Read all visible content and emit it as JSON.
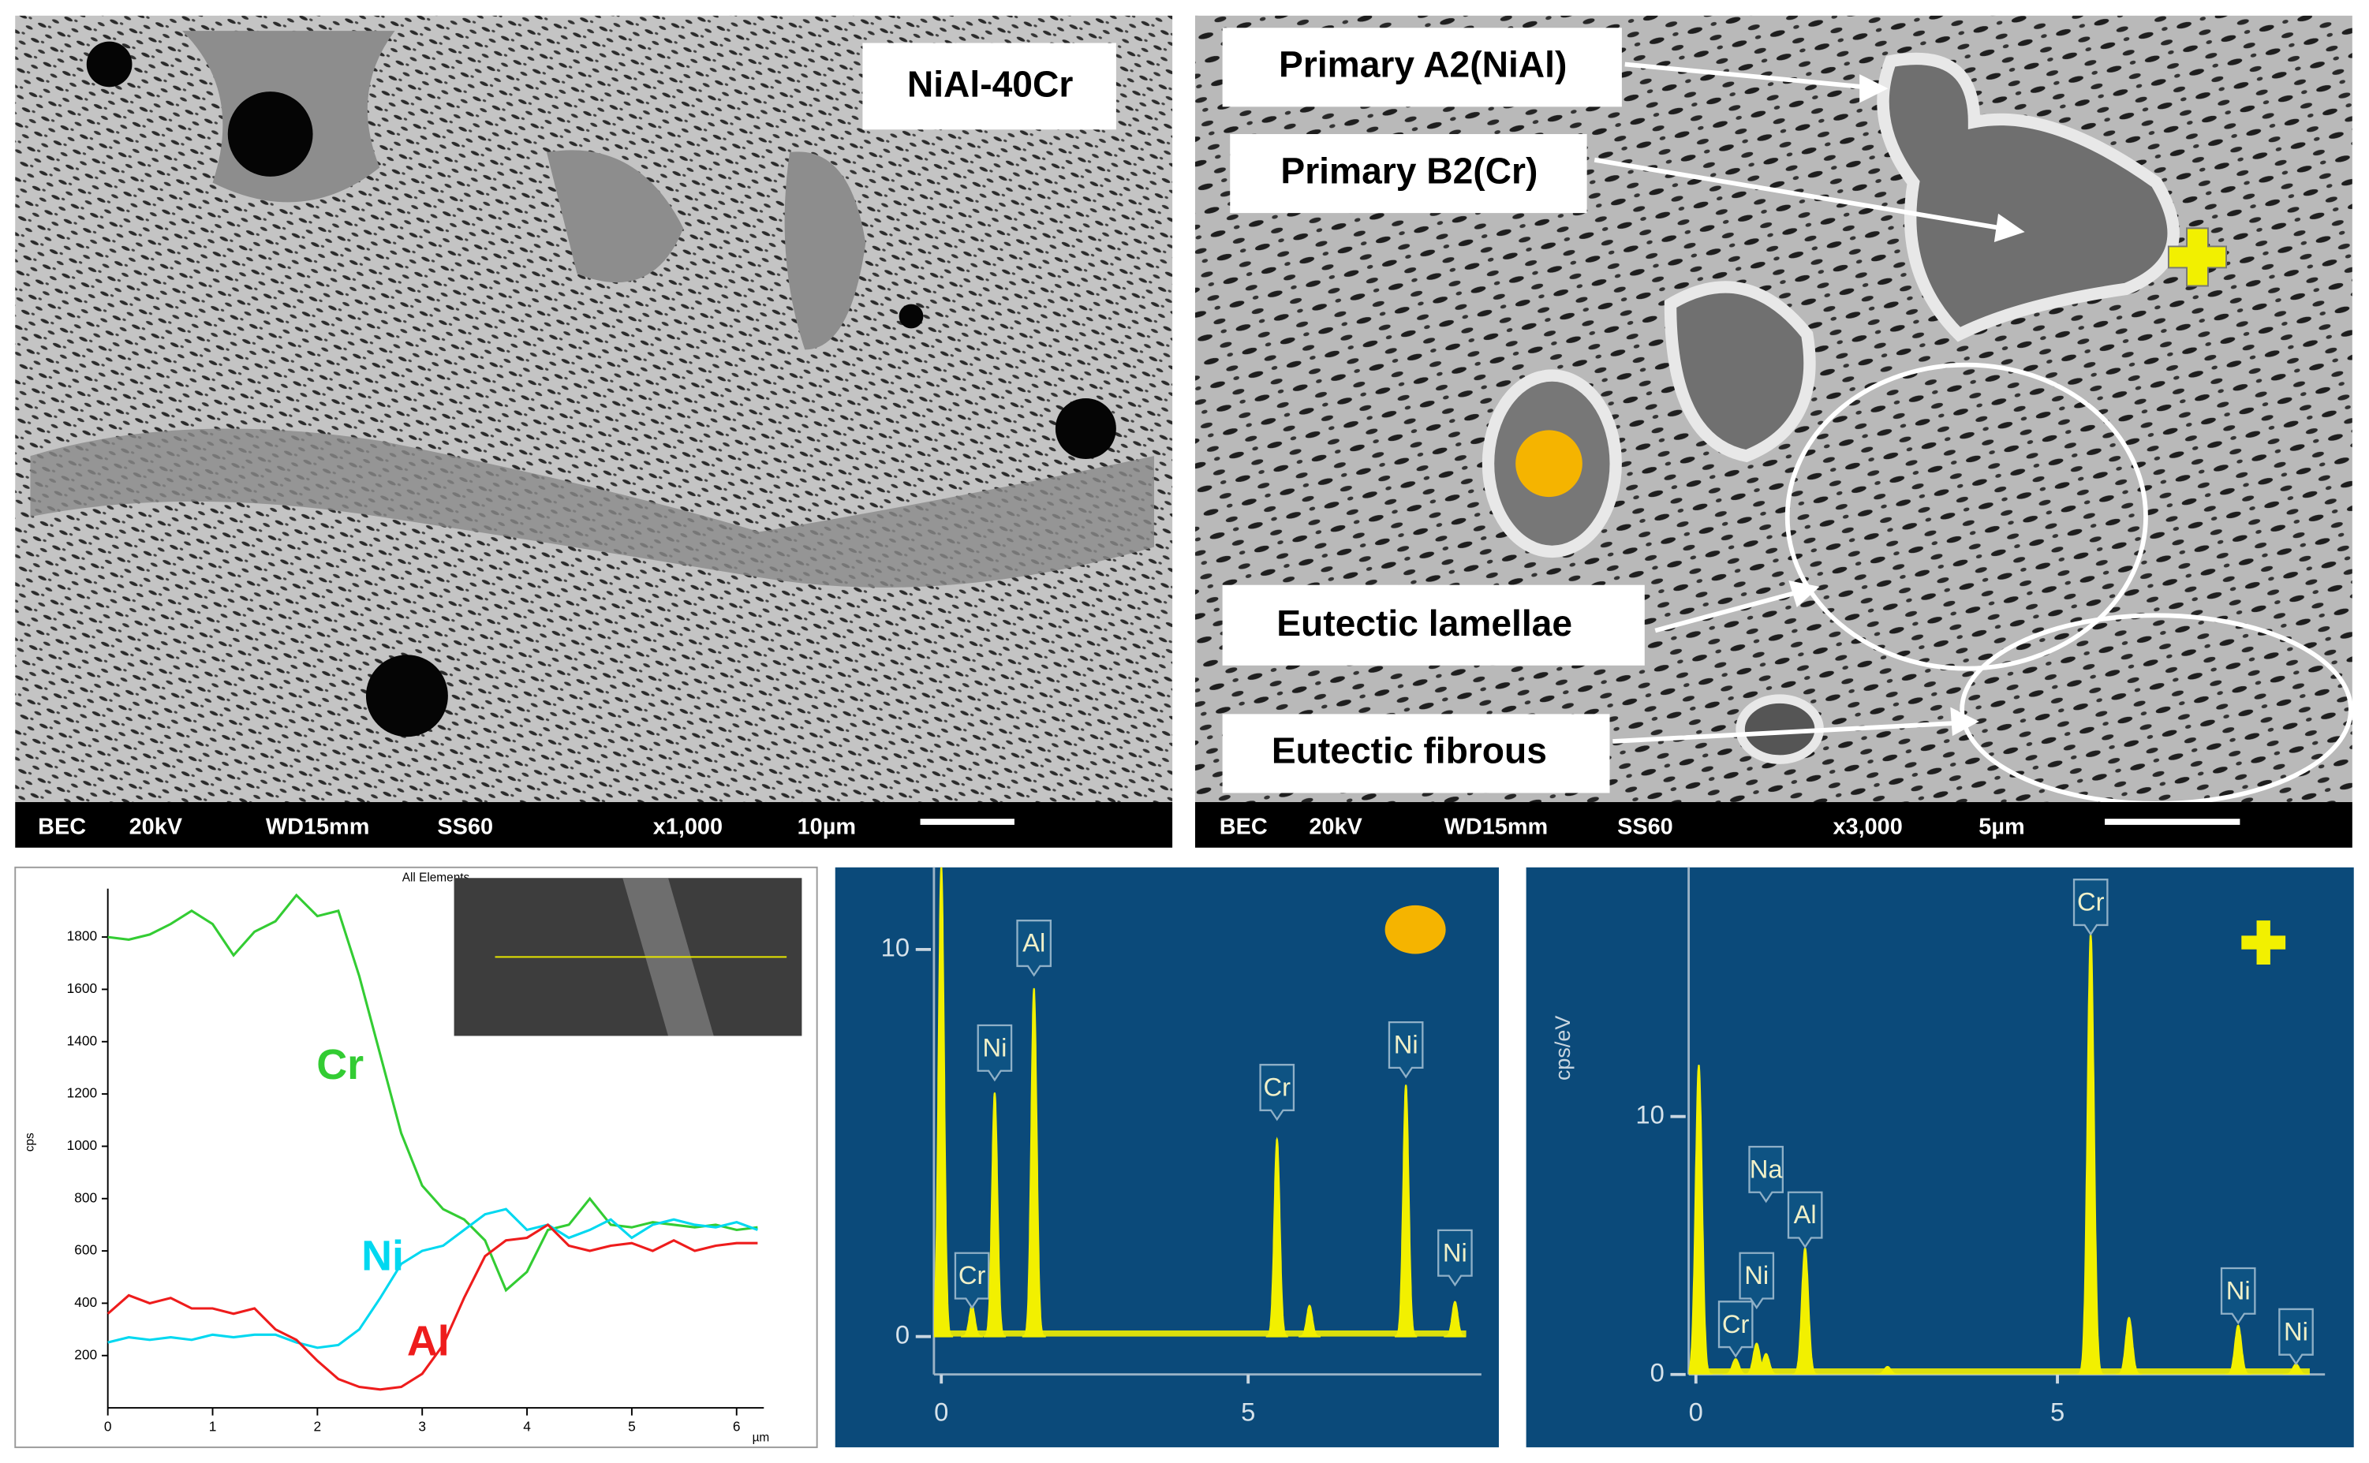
{
  "micrographs": [
    {
      "label": "NiAl-40Cr",
      "info": [
        "BEC",
        "20kV",
        "WD15mm",
        "SS60",
        "x1,000",
        "10µm"
      ]
    },
    {
      "annotations": [
        "Primary A2(NiAl)",
        "Primary B2(Cr)",
        "Eutectic lamellae",
        "Eutectic fibrous"
      ],
      "info": [
        "BEC",
        "20kV",
        "WD15mm",
        "SS60",
        "x3,000",
        "5µm"
      ]
    }
  ],
  "chart_data": [
    {
      "type": "line",
      "title": "All Elements",
      "y_label": "cps",
      "x_label": "µm",
      "x": [
        0,
        0.2,
        0.4,
        0.6,
        0.8,
        1.0,
        1.2,
        1.4,
        1.6,
        1.8,
        2.0,
        2.2,
        2.4,
        2.6,
        2.8,
        3.0,
        3.2,
        3.4,
        3.6,
        3.8,
        4.0,
        4.2,
        4.4,
        4.6,
        4.8,
        5.0,
        5.2,
        5.4,
        5.6,
        5.8,
        6.0,
        6.2
      ],
      "xlim": [
        0,
        6.26
      ],
      "ylim": [
        0,
        1985
      ],
      "xticks": [
        0,
        1,
        2,
        3,
        4,
        5,
        6
      ],
      "yticks": [
        200,
        400,
        600,
        800,
        1000,
        1200,
        1400,
        1600,
        1800
      ],
      "grid": false,
      "series": [
        {
          "name": "Cr",
          "color": "#33cc33",
          "values": [
            1800,
            1790,
            1810,
            1850,
            1900,
            1850,
            1730,
            1820,
            1860,
            1960,
            1880,
            1900,
            1650,
            1350,
            1050,
            850,
            760,
            720,
            640,
            450,
            520,
            680,
            700,
            800,
            700,
            690,
            710,
            700,
            690,
            700,
            680,
            690
          ]
        },
        {
          "name": "Ni",
          "color": "#00d8f0",
          "values": [
            250,
            270,
            260,
            270,
            260,
            280,
            270,
            280,
            280,
            250,
            230,
            240,
            300,
            420,
            550,
            600,
            620,
            680,
            740,
            760,
            680,
            700,
            650,
            680,
            720,
            650,
            700,
            720,
            700,
            690,
            710,
            680
          ]
        },
        {
          "name": "Al",
          "color": "#ee1c1c",
          "values": [
            360,
            430,
            400,
            420,
            380,
            380,
            360,
            380,
            300,
            260,
            180,
            110,
            80,
            70,
            80,
            130,
            240,
            420,
            580,
            640,
            650,
            700,
            620,
            600,
            620,
            630,
            600,
            640,
            600,
            620,
            630,
            630
          ]
        }
      ]
    },
    {
      "type": "spectrum",
      "color": "#f2f000",
      "background": "#0b4a7a",
      "x": [
        0.0,
        0.5,
        0.87,
        1.51,
        5.47,
        6.0,
        7.57,
        8.37
      ],
      "values": [
        12.2,
        0.8,
        6.3,
        9.0,
        5.1,
        0.8,
        6.5,
        0.9
      ],
      "labels": [
        null,
        "Cr",
        "Ni",
        "Al",
        "Cr",
        null,
        "Ni",
        "Ni"
      ],
      "xlim": [
        -0.12,
        8.8
      ],
      "ylim": [
        -0.98,
        12.16
      ],
      "xticks": [
        0,
        5
      ],
      "yticks": [
        0,
        10
      ]
    },
    {
      "type": "spectrum",
      "color": "#f2f000",
      "background": "#0b4a7a",
      "y_label": "cps/eV",
      "x": [
        0.04,
        0.55,
        0.84,
        0.97,
        1.51,
        2.65,
        5.46,
        5.99,
        7.5,
        8.3
      ],
      "values": [
        12.0,
        0.6,
        1.2,
        0.8,
        4.9,
        0.3,
        17.1,
        2.2,
        1.9,
        0.4
      ],
      "labels": [
        null,
        "Cr",
        "Ni",
        "Na",
        "Al",
        null,
        "Cr",
        null,
        "Ni",
        "Ni"
      ],
      "xlim": [
        -0.1,
        8.7
      ],
      "ylim": [
        0,
        19.6
      ],
      "xticks": [
        0,
        5
      ],
      "yticks": [
        0,
        10
      ]
    }
  ]
}
